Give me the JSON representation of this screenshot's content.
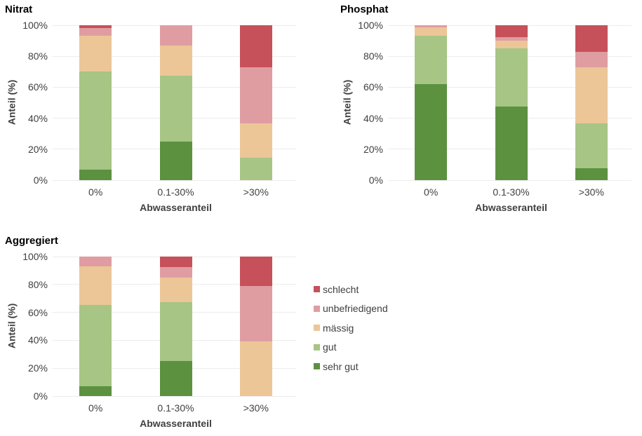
{
  "page": {
    "background": "#ffffff",
    "gridline_color": "#ececec",
    "text_color": "#404040"
  },
  "legend": {
    "position": "right-of-third-chart",
    "items": [
      {
        "label": "schlecht",
        "color": "#c6515a"
      },
      {
        "label": "unbefriedigend",
        "color": "#df9da2"
      },
      {
        "label": "mässig",
        "color": "#ecc697"
      },
      {
        "label": "gut",
        "color": "#a7c584"
      },
      {
        "label": "sehr gut",
        "color": "#5c9140"
      }
    ]
  },
  "chart_data": [
    {
      "type": "bar",
      "stacked": true,
      "stack_total": 100,
      "title": "Nitrat",
      "xlabel": "Abwasseranteil",
      "ylabel": "Anteil (%)",
      "categories": [
        "0%",
        "0.1-30%",
        ">30%"
      ],
      "yticks": [
        "0%",
        "20%",
        "40%",
        "60%",
        "80%",
        "100%"
      ],
      "ylim": [
        0,
        100
      ],
      "grid": "horizontal",
      "series": [
        {
          "name": "sehr gut",
          "color": "#5c9140",
          "values": [
            7,
            25,
            0
          ]
        },
        {
          "name": "gut",
          "color": "#a7c584",
          "values": [
            63,
            42.5,
            14.5
          ]
        },
        {
          "name": "mässig",
          "color": "#ecc697",
          "values": [
            23,
            19.5,
            22
          ]
        },
        {
          "name": "unbefriedigend",
          "color": "#df9da2",
          "values": [
            5,
            13,
            36.5
          ]
        },
        {
          "name": "schlecht",
          "color": "#c6515a",
          "values": [
            2,
            0,
            27
          ]
        }
      ]
    },
    {
      "type": "bar",
      "stacked": true,
      "stack_total": 100,
      "title": "Phosphat",
      "xlabel": "Abwasseranteil",
      "ylabel": "Anteil (%)",
      "categories": [
        "0%",
        "0.1-30%",
        ">30%"
      ],
      "yticks": [
        "0%",
        "20%",
        "40%",
        "60%",
        "80%",
        "100%"
      ],
      "ylim": [
        0,
        100
      ],
      "grid": "horizontal",
      "series": [
        {
          "name": "sehr gut",
          "color": "#5c9140",
          "values": [
            62,
            47.5,
            7.5
          ]
        },
        {
          "name": "gut",
          "color": "#a7c584",
          "values": [
            31,
            37.5,
            29
          ]
        },
        {
          "name": "mässig",
          "color": "#ecc697",
          "values": [
            5.5,
            5,
            36.5
          ]
        },
        {
          "name": "unbefriedigend",
          "color": "#df9da2",
          "values": [
            1.5,
            2.5,
            10
          ]
        },
        {
          "name": "schlecht",
          "color": "#c6515a",
          "values": [
            0,
            7.5,
            17
          ]
        }
      ]
    },
    {
      "type": "bar",
      "stacked": true,
      "stack_total": 100,
      "title": "Aggregiert",
      "xlabel": "Abwasseranteil",
      "ylabel": "Anteil (%)",
      "categories": [
        "0%",
        "0.1-30%",
        ">30%"
      ],
      "yticks": [
        "0%",
        "20%",
        "40%",
        "60%",
        "80%",
        "100%"
      ],
      "ylim": [
        0,
        100
      ],
      "grid": "horizontal",
      "series": [
        {
          "name": "sehr gut",
          "color": "#5c9140",
          "values": [
            7,
            25,
            0
          ]
        },
        {
          "name": "gut",
          "color": "#a7c584",
          "values": [
            58.5,
            42.5,
            0
          ]
        },
        {
          "name": "mässig",
          "color": "#ecc697",
          "values": [
            27.5,
            17.5,
            39
          ]
        },
        {
          "name": "unbefriedigend",
          "color": "#df9da2",
          "values": [
            7,
            7.5,
            40
          ]
        },
        {
          "name": "schlecht",
          "color": "#c6515a",
          "values": [
            0,
            7.5,
            21
          ]
        }
      ]
    }
  ]
}
